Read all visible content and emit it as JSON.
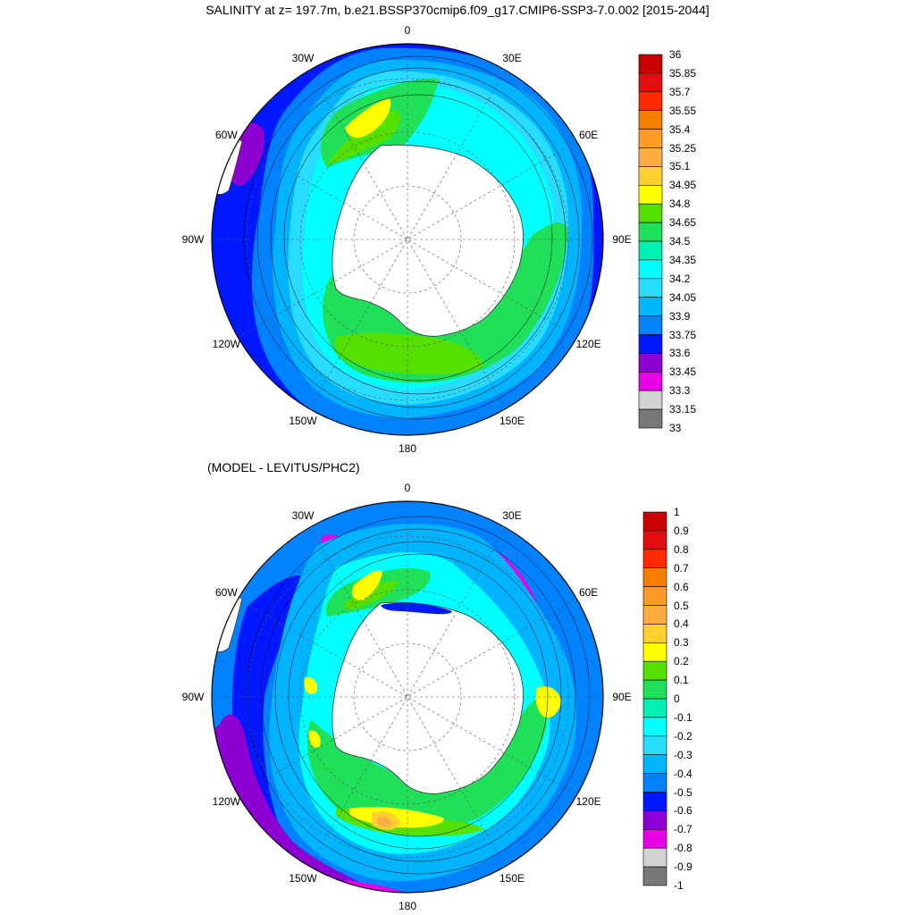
{
  "title": "SALINITY at z= 197.7m, b.e21.BSSP370cmip6.f09_g17.CMIP6-SSP3-7.0.002 [2015-2044]",
  "panels": [
    {
      "id": "top",
      "subtitle": "",
      "lon_labels": [
        "0",
        "30E",
        "60E",
        "90E",
        "120E",
        "150E",
        "180",
        "150W",
        "120W",
        "90W",
        "60W",
        "30W"
      ],
      "colorbar": {
        "labels": [
          "36",
          "35.85",
          "35.7",
          "35.55",
          "35.4",
          "35.25",
          "35.1",
          "34.95",
          "34.8",
          "34.65",
          "34.5",
          "34.35",
          "34.2",
          "34.05",
          "33.9",
          "33.75",
          "33.6",
          "33.45",
          "33.3",
          "33.15",
          "33"
        ],
        "colors": [
          "#c80000",
          "#e01010",
          "#ff2a00",
          "#f57f00",
          "#ff9a28",
          "#ffad42",
          "#ffd030",
          "#ffff00",
          "#55e000",
          "#20e05a",
          "#00f0b4",
          "#00ffff",
          "#28dcff",
          "#00b4ff",
          "#0082ff",
          "#0018ff",
          "#8c00d2",
          "#e600e6",
          "#d2d2d2",
          "#787878"
        ]
      }
    },
    {
      "id": "bottom",
      "subtitle": "(MODEL - LEVITUS/PHC2)",
      "lon_labels": [
        "0",
        "30E",
        "60E",
        "90E",
        "120E",
        "150E",
        "180",
        "150W",
        "120W",
        "90W",
        "60W",
        "30W"
      ],
      "colorbar": {
        "labels": [
          "1",
          "0.9",
          "0.8",
          "0.7",
          "0.6",
          "0.5",
          "0.4",
          "0.3",
          "0.2",
          "0.1",
          "0",
          "-0.1",
          "-0.2",
          "-0.3",
          "-0.4",
          "-0.5",
          "-0.6",
          "-0.7",
          "-0.8",
          "-0.9",
          "-1"
        ],
        "colors": [
          "#c80000",
          "#e01010",
          "#ff2a00",
          "#f57f00",
          "#ff9a28",
          "#ffad42",
          "#ffd030",
          "#ffff00",
          "#55e000",
          "#20e05a",
          "#00f0b4",
          "#00ffff",
          "#28dcff",
          "#00b4ff",
          "#0082ff",
          "#0018ff",
          "#8c00d2",
          "#e600e6",
          "#d2d2d2",
          "#787878"
        ]
      }
    }
  ]
}
